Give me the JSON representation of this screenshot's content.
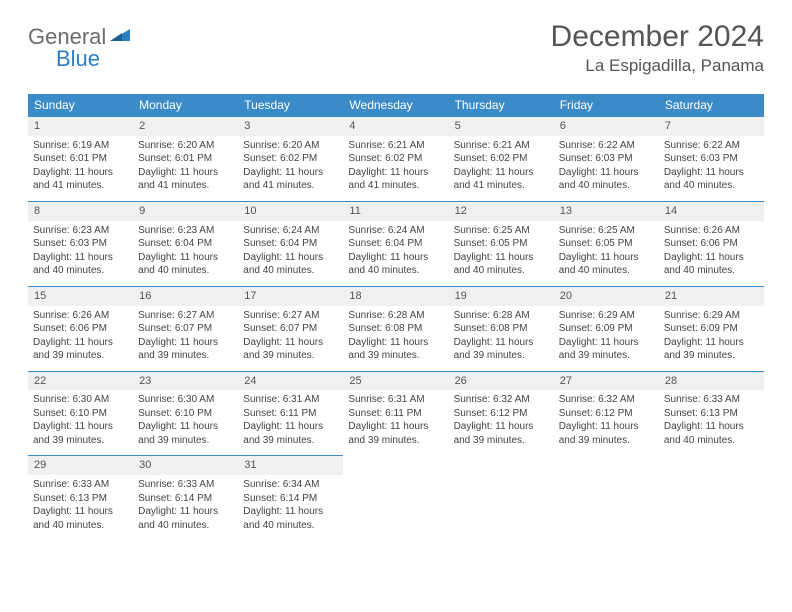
{
  "logo": {
    "text1": "General",
    "text2": "Blue"
  },
  "title": "December 2024",
  "location": "La Espigadilla, Panama",
  "colors": {
    "header_bg": "#3b8bc9",
    "header_text": "#ffffff",
    "daynum_bg": "#eef0f1",
    "border": "#3b8bc9",
    "logo_gray": "#6d6d6d",
    "logo_blue": "#2d7dc2"
  },
  "weekdays": [
    "Sunday",
    "Monday",
    "Tuesday",
    "Wednesday",
    "Thursday",
    "Friday",
    "Saturday"
  ],
  "weeks": [
    [
      {
        "day": "1",
        "sunrise": "Sunrise: 6:19 AM",
        "sunset": "Sunset: 6:01 PM",
        "daylight": "Daylight: 11 hours and 41 minutes."
      },
      {
        "day": "2",
        "sunrise": "Sunrise: 6:20 AM",
        "sunset": "Sunset: 6:01 PM",
        "daylight": "Daylight: 11 hours and 41 minutes."
      },
      {
        "day": "3",
        "sunrise": "Sunrise: 6:20 AM",
        "sunset": "Sunset: 6:02 PM",
        "daylight": "Daylight: 11 hours and 41 minutes."
      },
      {
        "day": "4",
        "sunrise": "Sunrise: 6:21 AM",
        "sunset": "Sunset: 6:02 PM",
        "daylight": "Daylight: 11 hours and 41 minutes."
      },
      {
        "day": "5",
        "sunrise": "Sunrise: 6:21 AM",
        "sunset": "Sunset: 6:02 PM",
        "daylight": "Daylight: 11 hours and 41 minutes."
      },
      {
        "day": "6",
        "sunrise": "Sunrise: 6:22 AM",
        "sunset": "Sunset: 6:03 PM",
        "daylight": "Daylight: 11 hours and 40 minutes."
      },
      {
        "day": "7",
        "sunrise": "Sunrise: 6:22 AM",
        "sunset": "Sunset: 6:03 PM",
        "daylight": "Daylight: 11 hours and 40 minutes."
      }
    ],
    [
      {
        "day": "8",
        "sunrise": "Sunrise: 6:23 AM",
        "sunset": "Sunset: 6:03 PM",
        "daylight": "Daylight: 11 hours and 40 minutes."
      },
      {
        "day": "9",
        "sunrise": "Sunrise: 6:23 AM",
        "sunset": "Sunset: 6:04 PM",
        "daylight": "Daylight: 11 hours and 40 minutes."
      },
      {
        "day": "10",
        "sunrise": "Sunrise: 6:24 AM",
        "sunset": "Sunset: 6:04 PM",
        "daylight": "Daylight: 11 hours and 40 minutes."
      },
      {
        "day": "11",
        "sunrise": "Sunrise: 6:24 AM",
        "sunset": "Sunset: 6:04 PM",
        "daylight": "Daylight: 11 hours and 40 minutes."
      },
      {
        "day": "12",
        "sunrise": "Sunrise: 6:25 AM",
        "sunset": "Sunset: 6:05 PM",
        "daylight": "Daylight: 11 hours and 40 minutes."
      },
      {
        "day": "13",
        "sunrise": "Sunrise: 6:25 AM",
        "sunset": "Sunset: 6:05 PM",
        "daylight": "Daylight: 11 hours and 40 minutes."
      },
      {
        "day": "14",
        "sunrise": "Sunrise: 6:26 AM",
        "sunset": "Sunset: 6:06 PM",
        "daylight": "Daylight: 11 hours and 40 minutes."
      }
    ],
    [
      {
        "day": "15",
        "sunrise": "Sunrise: 6:26 AM",
        "sunset": "Sunset: 6:06 PM",
        "daylight": "Daylight: 11 hours and 39 minutes."
      },
      {
        "day": "16",
        "sunrise": "Sunrise: 6:27 AM",
        "sunset": "Sunset: 6:07 PM",
        "daylight": "Daylight: 11 hours and 39 minutes."
      },
      {
        "day": "17",
        "sunrise": "Sunrise: 6:27 AM",
        "sunset": "Sunset: 6:07 PM",
        "daylight": "Daylight: 11 hours and 39 minutes."
      },
      {
        "day": "18",
        "sunrise": "Sunrise: 6:28 AM",
        "sunset": "Sunset: 6:08 PM",
        "daylight": "Daylight: 11 hours and 39 minutes."
      },
      {
        "day": "19",
        "sunrise": "Sunrise: 6:28 AM",
        "sunset": "Sunset: 6:08 PM",
        "daylight": "Daylight: 11 hours and 39 minutes."
      },
      {
        "day": "20",
        "sunrise": "Sunrise: 6:29 AM",
        "sunset": "Sunset: 6:09 PM",
        "daylight": "Daylight: 11 hours and 39 minutes."
      },
      {
        "day": "21",
        "sunrise": "Sunrise: 6:29 AM",
        "sunset": "Sunset: 6:09 PM",
        "daylight": "Daylight: 11 hours and 39 minutes."
      }
    ],
    [
      {
        "day": "22",
        "sunrise": "Sunrise: 6:30 AM",
        "sunset": "Sunset: 6:10 PM",
        "daylight": "Daylight: 11 hours and 39 minutes."
      },
      {
        "day": "23",
        "sunrise": "Sunrise: 6:30 AM",
        "sunset": "Sunset: 6:10 PM",
        "daylight": "Daylight: 11 hours and 39 minutes."
      },
      {
        "day": "24",
        "sunrise": "Sunrise: 6:31 AM",
        "sunset": "Sunset: 6:11 PM",
        "daylight": "Daylight: 11 hours and 39 minutes."
      },
      {
        "day": "25",
        "sunrise": "Sunrise: 6:31 AM",
        "sunset": "Sunset: 6:11 PM",
        "daylight": "Daylight: 11 hours and 39 minutes."
      },
      {
        "day": "26",
        "sunrise": "Sunrise: 6:32 AM",
        "sunset": "Sunset: 6:12 PM",
        "daylight": "Daylight: 11 hours and 39 minutes."
      },
      {
        "day": "27",
        "sunrise": "Sunrise: 6:32 AM",
        "sunset": "Sunset: 6:12 PM",
        "daylight": "Daylight: 11 hours and 39 minutes."
      },
      {
        "day": "28",
        "sunrise": "Sunrise: 6:33 AM",
        "sunset": "Sunset: 6:13 PM",
        "daylight": "Daylight: 11 hours and 40 minutes."
      }
    ],
    [
      {
        "day": "29",
        "sunrise": "Sunrise: 6:33 AM",
        "sunset": "Sunset: 6:13 PM",
        "daylight": "Daylight: 11 hours and 40 minutes."
      },
      {
        "day": "30",
        "sunrise": "Sunrise: 6:33 AM",
        "sunset": "Sunset: 6:14 PM",
        "daylight": "Daylight: 11 hours and 40 minutes."
      },
      {
        "day": "31",
        "sunrise": "Sunrise: 6:34 AM",
        "sunset": "Sunset: 6:14 PM",
        "daylight": "Daylight: 11 hours and 40 minutes."
      },
      null,
      null,
      null,
      null
    ]
  ]
}
